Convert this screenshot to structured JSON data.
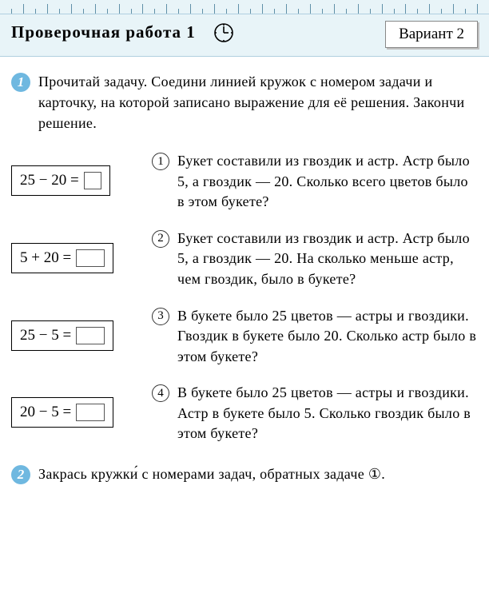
{
  "header": {
    "title": "Проверочная работа 1",
    "variant": "Вариант 2"
  },
  "task1": {
    "number": "1",
    "intro": "Прочитай задачу. Соедини линией кружок с номером задачи и карточку, на которой записано выражение для её решения. Закончи решение.",
    "rows": [
      {
        "expr": "25 − 20 =",
        "ans_width": 22,
        "num": "1",
        "text": "Букет составили из гвоздик и астр. Астр было 5, а гвоздик — 20. Сколько всего цветов было в этом букете?"
      },
      {
        "expr": "5 + 20 =",
        "ans_width": 36,
        "num": "2",
        "text": "Букет составили из гвоздик и астр. Астр было 5, а гвоздик — 20. На сколько меньше астр, чем гвоздик, было в букете?"
      },
      {
        "expr": "25 − 5 =",
        "ans_width": 36,
        "num": "3",
        "text": "В букете было 25 цветов — астры и гвоздики. Гвоздик в букете было 20. Сколько астр было в этом букете?"
      },
      {
        "expr": "20 − 5 =",
        "ans_width": 36,
        "num": "4",
        "text": "В букете было 25 цветов — астры и гвоздики. Астр в букете было 5. Сколько гвоздик было в этом букете?"
      }
    ]
  },
  "task2": {
    "number": "2",
    "text": "Закрась кружки́ с номерами задач, обратных зада­че ①."
  },
  "style": {
    "ruler_pattern": [
      6,
      12,
      6,
      12,
      6,
      12,
      6,
      12,
      6,
      12,
      6,
      12,
      6,
      12,
      6,
      12,
      6,
      12,
      6,
      12,
      6,
      12,
      6,
      12,
      6,
      12,
      6,
      12,
      6,
      12,
      6,
      12,
      6,
      12,
      6,
      12,
      6,
      12,
      6,
      12
    ]
  }
}
